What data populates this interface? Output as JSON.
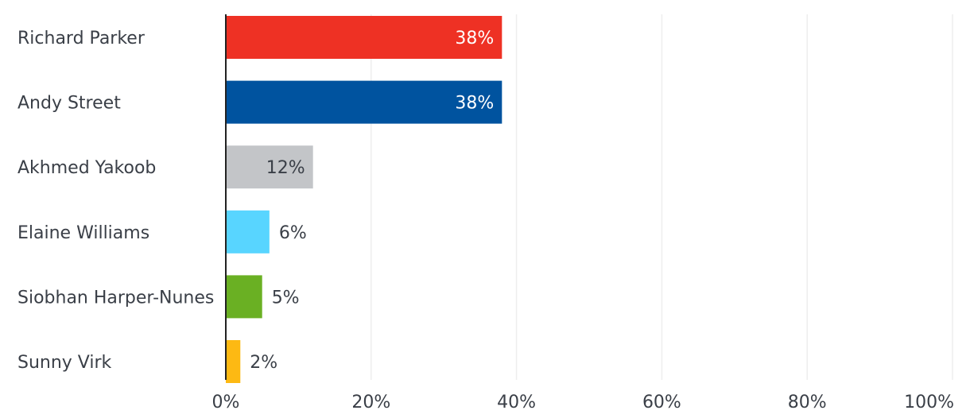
{
  "chart_data": {
    "type": "bar",
    "orientation": "horizontal",
    "title": "",
    "xlabel": "",
    "ylabel": "",
    "xlim": [
      0,
      100
    ],
    "grid": true,
    "categories": [
      "Richard Parker",
      "Andy Street",
      "Akhmed Yakoob",
      "Elaine Williams",
      "Siobhan Harper-Nunes",
      "Sunny Virk"
    ],
    "values": [
      38,
      38,
      12,
      6,
      5,
      2
    ],
    "value_labels": [
      "38%",
      "38%",
      "12%",
      "6%",
      "5%",
      "2%"
    ],
    "bar_colors": [
      "#ee3124",
      "#00539f",
      "#c3c5c8",
      "#58d5ff",
      "#6ab023",
      "#fdb913"
    ],
    "label_inside": [
      true,
      true,
      true,
      false,
      false,
      false
    ],
    "label_colors": [
      "#ffffff",
      "#ffffff",
      "#3a3f47",
      "#3a3f47",
      "#3a3f47",
      "#3a3f47"
    ],
    "x_ticks": [
      0,
      20,
      40,
      60,
      80,
      100
    ],
    "x_tick_labels": [
      "0%",
      "20%",
      "40%",
      "60%",
      "80%",
      "100%"
    ],
    "colors": {
      "gridline": "#eeeeee",
      "axis": "#222222",
      "text": "#3a3f47"
    }
  }
}
